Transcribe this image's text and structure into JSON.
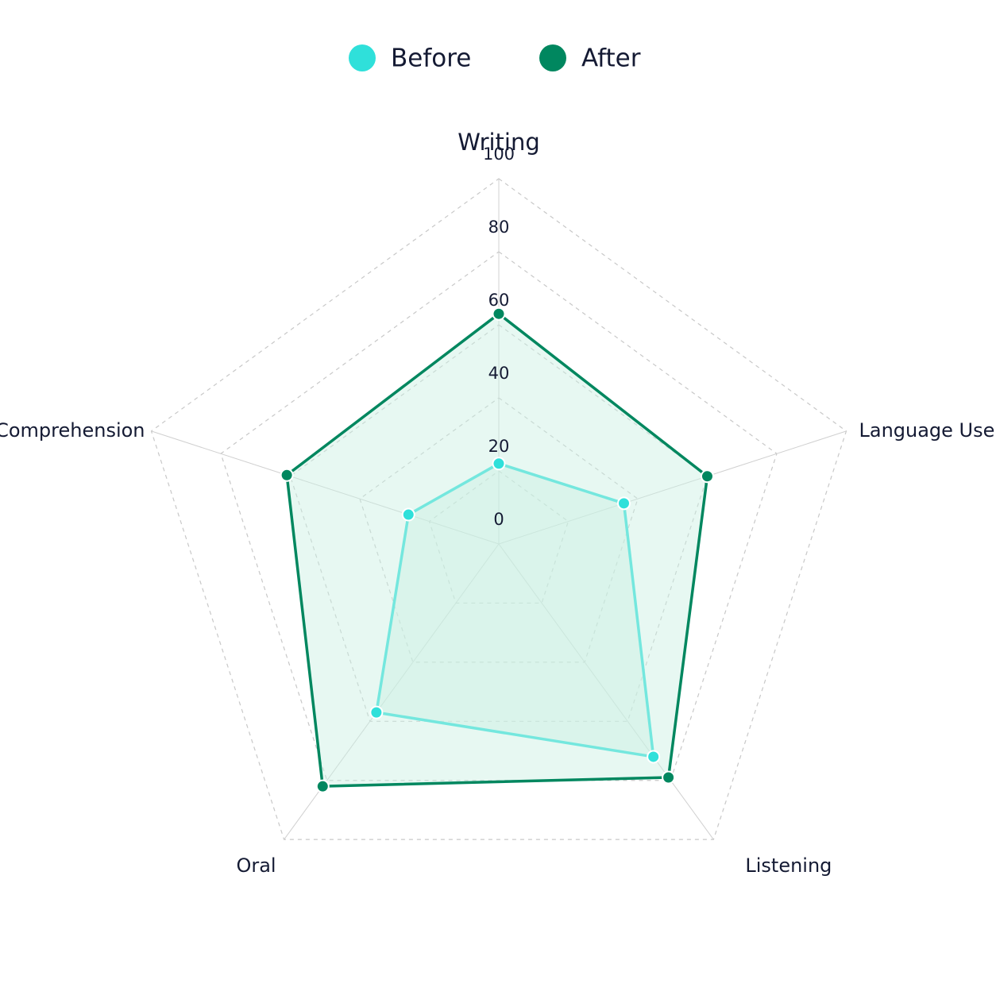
{
  "chart_data": {
    "type": "radar",
    "categories": [
      "Writing",
      "Language Use",
      "Listening",
      "Oral",
      "Comprehension"
    ],
    "series": [
      {
        "name": "Before",
        "color": "#2fe0da",
        "values": [
          22,
          36,
          72,
          57,
          26
        ]
      },
      {
        "name": "After",
        "color": "#00875f",
        "values": [
          63,
          60,
          79,
          82,
          61
        ]
      }
    ],
    "rlim": [
      0,
      100
    ],
    "rticks": [
      0,
      20,
      40,
      60,
      80,
      100
    ],
    "grid": true,
    "legend": "top"
  }
}
